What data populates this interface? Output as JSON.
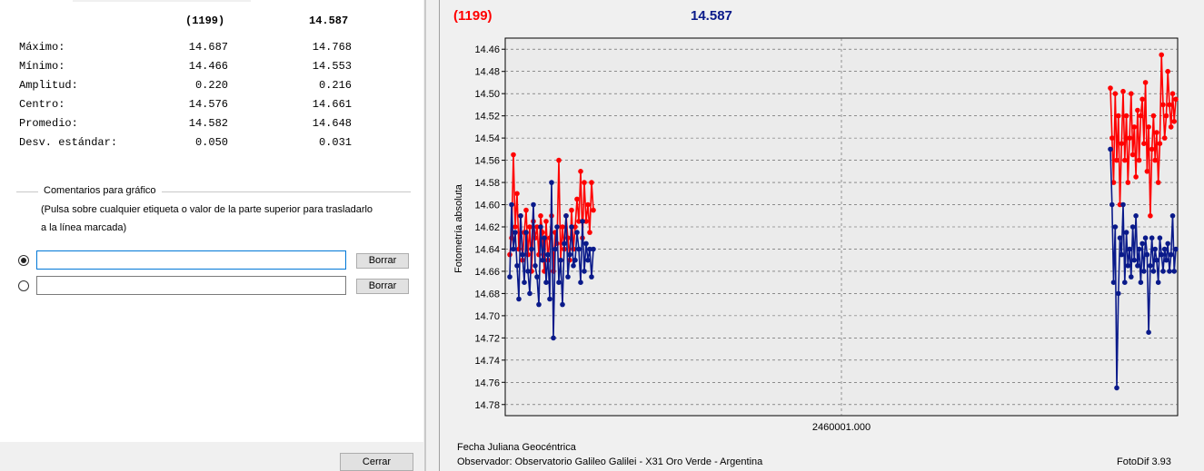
{
  "stats": {
    "headers": [
      "(1199)",
      "14.587"
    ],
    "rows": [
      {
        "label": "Máximo:",
        "v1": "14.687",
        "v2": "14.768"
      },
      {
        "label": "Mínimo:",
        "v1": "14.466",
        "v2": "14.553"
      },
      {
        "label": "Amplitud:",
        "v1": "0.220",
        "v2": "0.216"
      },
      {
        "label": "Centro:",
        "v1": "14.576",
        "v2": "14.661"
      },
      {
        "label": "Promedio:",
        "v1": "14.582",
        "v2": "14.648"
      },
      {
        "label": "Desv. estándar:",
        "v1": "0.050",
        "v2": "0.031"
      }
    ]
  },
  "comments": {
    "group_title": "Comentarios para gráfico",
    "hint_line1": "(Pulsa sobre cualquier etiqueta o valor de la parte superior para trasladarlo",
    "hint_line2": "a la línea marcada)",
    "fields": [
      {
        "value": "",
        "selected": true,
        "clear_label": "Borrar"
      },
      {
        "value": "",
        "selected": false,
        "clear_label": "Borrar"
      }
    ]
  },
  "close_label": "Cerrar",
  "chart_header": {
    "left": "(1199)",
    "right": "14.587"
  },
  "chart_footer": {
    "line1": "Fecha Juliana Geocéntrica",
    "line2": "Observador: Observatorio Galileo Galilei - X31 Oro Verde - Argentina",
    "version": "FotoDif 3.93"
  },
  "colors": {
    "series1": "#ff0000",
    "series2": "#0a1a8a"
  },
  "chart_data": {
    "type": "line",
    "ylabel": "Fotometría absoluta",
    "xlabel": "",
    "x_tick_label": "2460001.000",
    "y_inverted": true,
    "ylim": [
      14.45,
      14.79
    ],
    "y_ticks": [
      "14.46",
      "14.48",
      "14.50",
      "14.52",
      "14.54",
      "14.56",
      "14.58",
      "14.60",
      "14.62",
      "14.64",
      "14.66",
      "14.68",
      "14.70",
      "14.72",
      "14.74",
      "14.76",
      "14.78"
    ],
    "grid": true,
    "series": [
      {
        "values": [
          14.645,
          14.63,
          14.555,
          14.62,
          14.59,
          14.64,
          14.61,
          14.65,
          14.625,
          14.605,
          14.645,
          14.62,
          14.66,
          14.615,
          14.63,
          14.62,
          14.645,
          14.61,
          14.625,
          14.66,
          14.615,
          14.65,
          14.63,
          14.61,
          14.66,
          14.625,
          14.635,
          14.56,
          14.65,
          14.62,
          14.64,
          14.61,
          14.63,
          14.65,
          14.605,
          14.64,
          14.62,
          14.595,
          14.615,
          14.57,
          14.63,
          14.58,
          14.615,
          14.6,
          14.625,
          14.58,
          14.605,
          14.495,
          14.54,
          14.58,
          14.5,
          14.56,
          14.52,
          14.6,
          14.545,
          14.498,
          14.56,
          14.52,
          14.58,
          14.54,
          14.5,
          14.555,
          14.53,
          14.575,
          14.515,
          14.56,
          14.52,
          14.505,
          14.545,
          14.49,
          14.57,
          14.53,
          14.61,
          14.55,
          14.52,
          14.56,
          14.535,
          14.58,
          14.545,
          14.465,
          14.51,
          14.54,
          14.52,
          14.48,
          14.51,
          14.53,
          14.5,
          14.525,
          14.505
        ]
      },
      {
        "values": [
          14.665,
          14.6,
          14.64,
          14.625,
          14.655,
          14.685,
          14.61,
          14.645,
          14.67,
          14.625,
          14.66,
          14.68,
          14.64,
          14.6,
          14.655,
          14.665,
          14.69,
          14.62,
          14.65,
          14.63,
          14.67,
          14.645,
          14.685,
          14.58,
          14.72,
          14.64,
          14.62,
          14.67,
          14.65,
          14.69,
          14.635,
          14.61,
          14.665,
          14.645,
          14.62,
          14.655,
          14.65,
          14.625,
          14.64,
          14.67,
          14.615,
          14.66,
          14.635,
          14.65,
          14.64,
          14.665,
          14.64,
          14.55,
          14.6,
          14.67,
          14.62,
          14.765,
          14.68,
          14.63,
          14.645,
          14.6,
          14.67,
          14.625,
          14.655,
          14.64,
          14.665,
          14.62,
          14.65,
          14.61,
          14.655,
          14.64,
          14.67,
          14.635,
          14.66,
          14.63,
          14.645,
          14.715,
          14.655,
          14.63,
          14.66,
          14.64,
          14.65,
          14.67,
          14.63,
          14.645,
          14.66,
          14.64,
          14.65,
          14.635,
          14.66,
          14.645,
          14.61,
          14.66,
          14.64
        ]
      }
    ]
  }
}
